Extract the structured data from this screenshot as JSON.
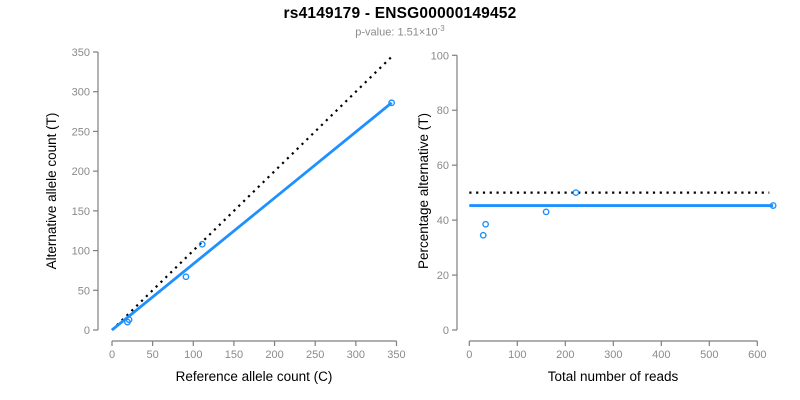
{
  "header": {
    "title": "rs4149179 - ENSG00000149452",
    "pvalue_label": "p-value:",
    "pvalue_mantissa": "1.51",
    "times_symbol": "×",
    "pvalue_base": "10",
    "pvalue_exponent": "-3"
  },
  "colors": {
    "accent_blue": "#1e90ff",
    "dotted_black": "#000000",
    "axis_gray": "#7f7f7f",
    "tick_label_gray": "#8a8a8a",
    "title_black": "#000000",
    "subtitle_gray": "#8a8a8a"
  },
  "chart_data": [
    {
      "type": "scatter",
      "name": "allele-counts-plot",
      "xlabel": "Reference allele count (C)",
      "ylabel": "Alternative allele count (T)",
      "xlim": [
        0,
        350
      ],
      "ylim": [
        0,
        350
      ],
      "xticks": [
        0,
        50,
        100,
        150,
        200,
        250,
        300,
        350
      ],
      "yticks": [
        0,
        50,
        100,
        150,
        200,
        250,
        300,
        350
      ],
      "grid": false,
      "legend": "none",
      "points": [
        [
          19,
          10
        ],
        [
          21,
          13
        ],
        [
          91,
          67
        ],
        [
          111,
          108
        ],
        [
          344,
          286
        ]
      ],
      "lines": [
        {
          "name": "expected-5050-line",
          "style": "dotted",
          "color": "#000000",
          "points": [
            [
              0,
              0
            ],
            [
              345,
              345
            ]
          ]
        },
        {
          "name": "fitted-ratio-line",
          "style": "solid",
          "color": "#1e90ff",
          "points": [
            [
              0,
              0
            ],
            [
              344,
              286
            ]
          ]
        }
      ]
    },
    {
      "type": "scatter",
      "name": "percentage-alternative-plot",
      "xlabel": "Total number of reads",
      "ylabel": "Percentage alternative (T)",
      "xlim": [
        0,
        660
      ],
      "ylim": [
        0,
        100
      ],
      "xticks": [
        0,
        100,
        200,
        300,
        400,
        500,
        600
      ],
      "yticks": [
        0,
        20,
        40,
        60,
        80,
        100
      ],
      "grid": false,
      "legend": "none",
      "points": [
        [
          29,
          34.5
        ],
        [
          34,
          38.5
        ],
        [
          160,
          43
        ],
        [
          222,
          50
        ],
        [
          633,
          45.3
        ]
      ],
      "lines": [
        {
          "name": "expected-50pct-line",
          "style": "dotted",
          "color": "#000000",
          "points": [
            [
              0,
              50
            ],
            [
              625,
              50
            ]
          ]
        },
        {
          "name": "mean-percentage-line",
          "style": "solid",
          "color": "#1e90ff",
          "points": [
            [
              0,
              45.3
            ],
            [
              633,
              45.3
            ]
          ]
        }
      ]
    }
  ]
}
